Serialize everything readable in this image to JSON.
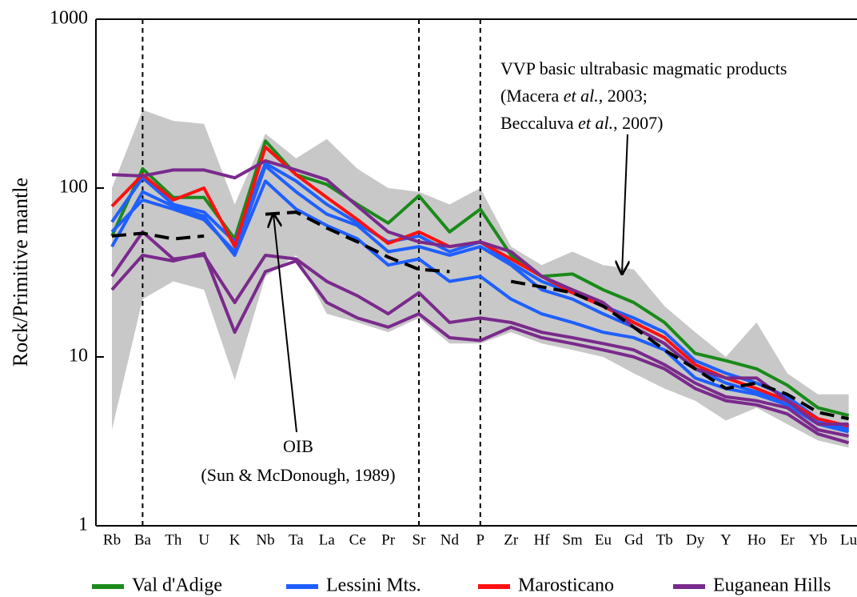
{
  "chart_data": {
    "type": "line",
    "y_label": "Rock/Primitive mantle",
    "categories": [
      "Rb",
      "Ba",
      "Th",
      "U",
      "K",
      "Nb",
      "Ta",
      "La",
      "Ce",
      "Pr",
      "Sr",
      "Nd",
      "P",
      "Zr",
      "Hf",
      "Sm",
      "Eu",
      "Gd",
      "Tb",
      "Dy",
      "Y",
      "Ho",
      "Er",
      "Yb",
      "Lu"
    ],
    "ylim": [
      1,
      1000
    ],
    "yticks": [
      1,
      10,
      100,
      1000
    ],
    "log_y": true,
    "dashed_lines_at": [
      "Ba",
      "Sr",
      "P"
    ],
    "envelope": {
      "color": "#c8c8c8",
      "upper": [
        100,
        290,
        250,
        240,
        80,
        210,
        150,
        195,
        130,
        100,
        95,
        80,
        100,
        45,
        35,
        42,
        35,
        33,
        20,
        14,
        10,
        16,
        8,
        6,
        6
      ],
      "lower": [
        3.7,
        22,
        28,
        25,
        7.3,
        30,
        40,
        18,
        16,
        14,
        17,
        12,
        12,
        14,
        12,
        11,
        10,
        8,
        6.5,
        5.5,
        4.2,
        5,
        4,
        3.2,
        2.9
      ]
    },
    "reference": {
      "color": "#000000",
      "dashed": true,
      "values": [
        52,
        54,
        50,
        52,
        null,
        70,
        72,
        58,
        48,
        39,
        33,
        32,
        null,
        28,
        26,
        24,
        20,
        15,
        11,
        8.5,
        6.5,
        7,
        6,
        4.7,
        4.3
      ]
    },
    "series": [
      {
        "name": "Val d'Adige",
        "color": "#1a8a1a",
        "lines": [
          [
            52,
            130,
            88,
            88,
            50,
            190,
            120,
            105,
            80,
            62,
            90,
            55,
            75,
            40,
            30,
            31,
            25,
            21,
            16,
            10.5,
            9.5,
            8.5,
            6.8,
            5,
            4.5
          ]
        ]
      },
      {
        "name": "Lessini Mts.",
        "color": "#1f5fff",
        "lines": [
          [
            63,
            115,
            80,
            72,
            48,
            140,
            110,
            80,
            62,
            48,
            52,
            42,
            48,
            36,
            28,
            24,
            20,
            17,
            14,
            9.5,
            8,
            7,
            5.8,
            4.3,
            3.8
          ],
          [
            55,
            85,
            75,
            65,
            42,
            135,
            95,
            70,
            60,
            42,
            45,
            40,
            45,
            35,
            25,
            22,
            18,
            15,
            12,
            8.5,
            7,
            6.2,
            5.3,
            4.1,
            3.7
          ],
          [
            45,
            95,
            78,
            68,
            40,
            110,
            75,
            60,
            50,
            35,
            38,
            28,
            30,
            22,
            18,
            16,
            14,
            13,
            11,
            7.5,
            6.5,
            6,
            5.2,
            4,
            3.6
          ]
        ]
      },
      {
        "name": "Marosticano",
        "color": "#ff1010",
        "lines": [
          [
            78,
            120,
            85,
            100,
            45,
            175,
            120,
            88,
            65,
            47,
            55,
            45,
            48,
            38,
            30,
            24,
            20,
            16,
            13,
            9,
            7.5,
            6.5,
            5.5,
            4.3,
            3.9
          ]
        ]
      },
      {
        "name": "Euganean Hills",
        "color": "#7a2a8c",
        "lines": [
          [
            120,
            118,
            128,
            128,
            115,
            145,
            128,
            112,
            78,
            55,
            48,
            45,
            48,
            42,
            30,
            25,
            21,
            15,
            12,
            8.5,
            7.5,
            7.5,
            5.5,
            4,
            4
          ],
          [
            30,
            55,
            38,
            40,
            21,
            40,
            38,
            28,
            23,
            18,
            24,
            16,
            17,
            16,
            14,
            13,
            12,
            11,
            9,
            7,
            5.8,
            5.5,
            5,
            3.7,
            3.4
          ],
          [
            25,
            40,
            37,
            41,
            14,
            32,
            37,
            21,
            17,
            15,
            18,
            13,
            12.5,
            15,
            13,
            12,
            11,
            10,
            8.5,
            6.5,
            5.5,
            5.2,
            4.6,
            3.5,
            3.1
          ]
        ]
      }
    ],
    "annotations": {
      "vvp": [
        [
          {
            "text": "VVP basic ultrabasic magmatic products"
          }
        ],
        [
          {
            "text": "(Macera "
          },
          {
            "text": "et al.",
            "italic": true
          },
          {
            "text": ", 2003;"
          }
        ],
        [
          {
            "text": "Beccaluva "
          },
          {
            "text": "et al.",
            "italic": true
          },
          {
            "text": ", 2007)"
          }
        ]
      ],
      "oib": [
        "OIB",
        "(Sun & McDonough, 1989)"
      ]
    }
  }
}
